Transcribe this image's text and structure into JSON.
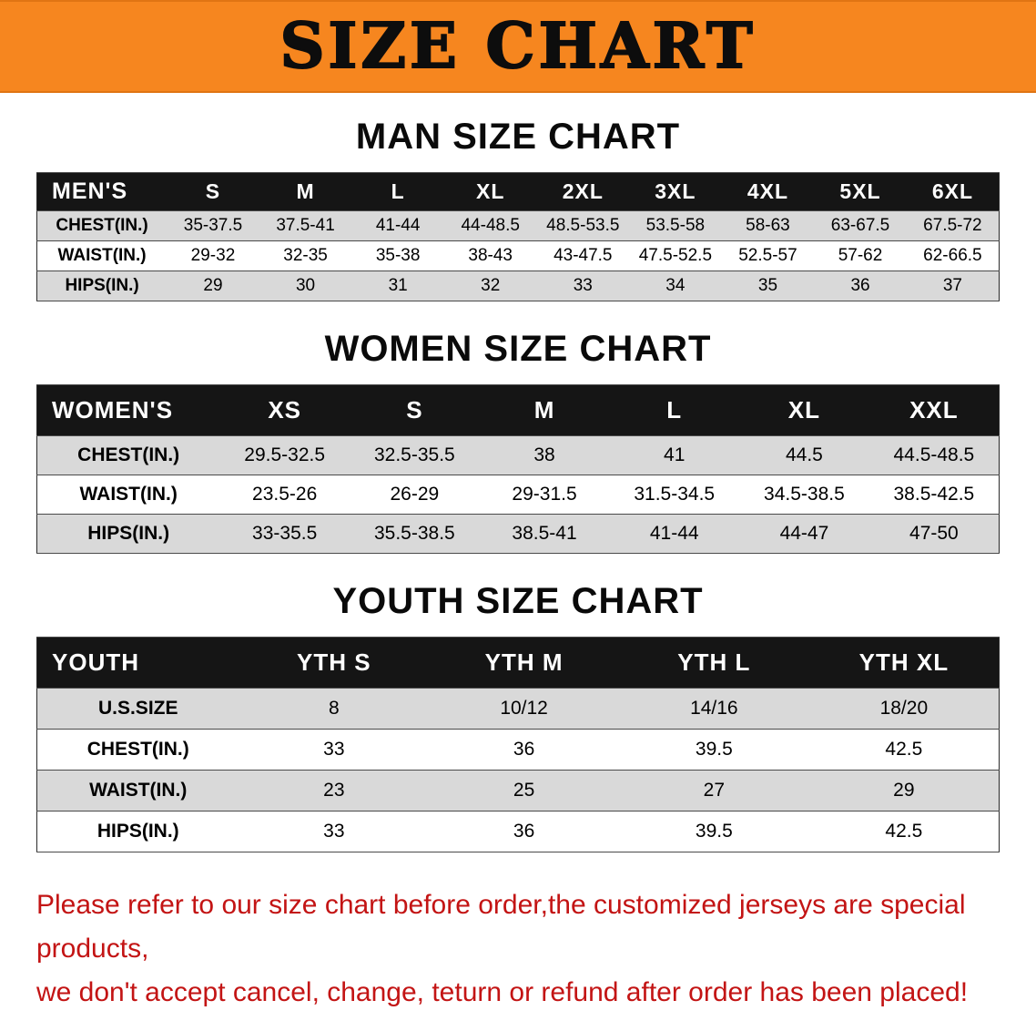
{
  "banner": {
    "title": "SIZE CHART"
  },
  "colors": {
    "banner_background": "#f6861f",
    "table_header_background": "#151515",
    "table_alt_row": "#d9d9d9",
    "footer_text": "#c31414"
  },
  "chart_data": [
    {
      "type": "table",
      "title": "MAN SIZE CHART",
      "columns": [
        "MEN'S",
        "S",
        "M",
        "L",
        "XL",
        "2XL",
        "3XL",
        "4XL",
        "5XL",
        "6XL"
      ],
      "rows": [
        [
          "CHEST(IN.)",
          "35-37.5",
          "37.5-41",
          "41-44",
          "44-48.5",
          "48.5-53.5",
          "53.5-58",
          "58-63",
          "63-67.5",
          "67.5-72"
        ],
        [
          "WAIST(IN.)",
          "29-32",
          "32-35",
          "35-38",
          "38-43",
          "43-47.5",
          "47.5-52.5",
          "52.5-57",
          "57-62",
          "62-66.5"
        ],
        [
          "HIPS(IN.)",
          "29",
          "30",
          "31",
          "32",
          "33",
          "34",
          "35",
          "36",
          "37"
        ]
      ]
    },
    {
      "type": "table",
      "title": "WOMEN SIZE CHART",
      "columns": [
        "WOMEN'S",
        "XS",
        "S",
        "M",
        "L",
        "XL",
        "XXL"
      ],
      "rows": [
        [
          "CHEST(IN.)",
          "29.5-32.5",
          "32.5-35.5",
          "38",
          "41",
          "44.5",
          "44.5-48.5"
        ],
        [
          "WAIST(IN.)",
          "23.5-26",
          "26-29",
          "29-31.5",
          "31.5-34.5",
          "34.5-38.5",
          "38.5-42.5"
        ],
        [
          "HIPS(IN.)",
          "33-35.5",
          "35.5-38.5",
          "38.5-41",
          "41-44",
          "44-47",
          "47-50"
        ]
      ]
    },
    {
      "type": "table",
      "title": "YOUTH SIZE CHART",
      "columns": [
        "YOUTH",
        "YTH S",
        "YTH M",
        "YTH L",
        "YTH XL"
      ],
      "rows": [
        [
          "U.S.SIZE",
          "8",
          "10/12",
          "14/16",
          "18/20"
        ],
        [
          "CHEST(IN.)",
          "33",
          "36",
          "39.5",
          "42.5"
        ],
        [
          "WAIST(IN.)",
          "23",
          "25",
          "27",
          "29"
        ],
        [
          "HIPS(IN.)",
          "33",
          "36",
          "39.5",
          "42.5"
        ]
      ]
    }
  ],
  "footer": {
    "line1": "Please refer to our size chart before order,the customized jerseys are special products,",
    "line2": "we don't accept cancel, change, teturn or refund after order has been placed!"
  }
}
